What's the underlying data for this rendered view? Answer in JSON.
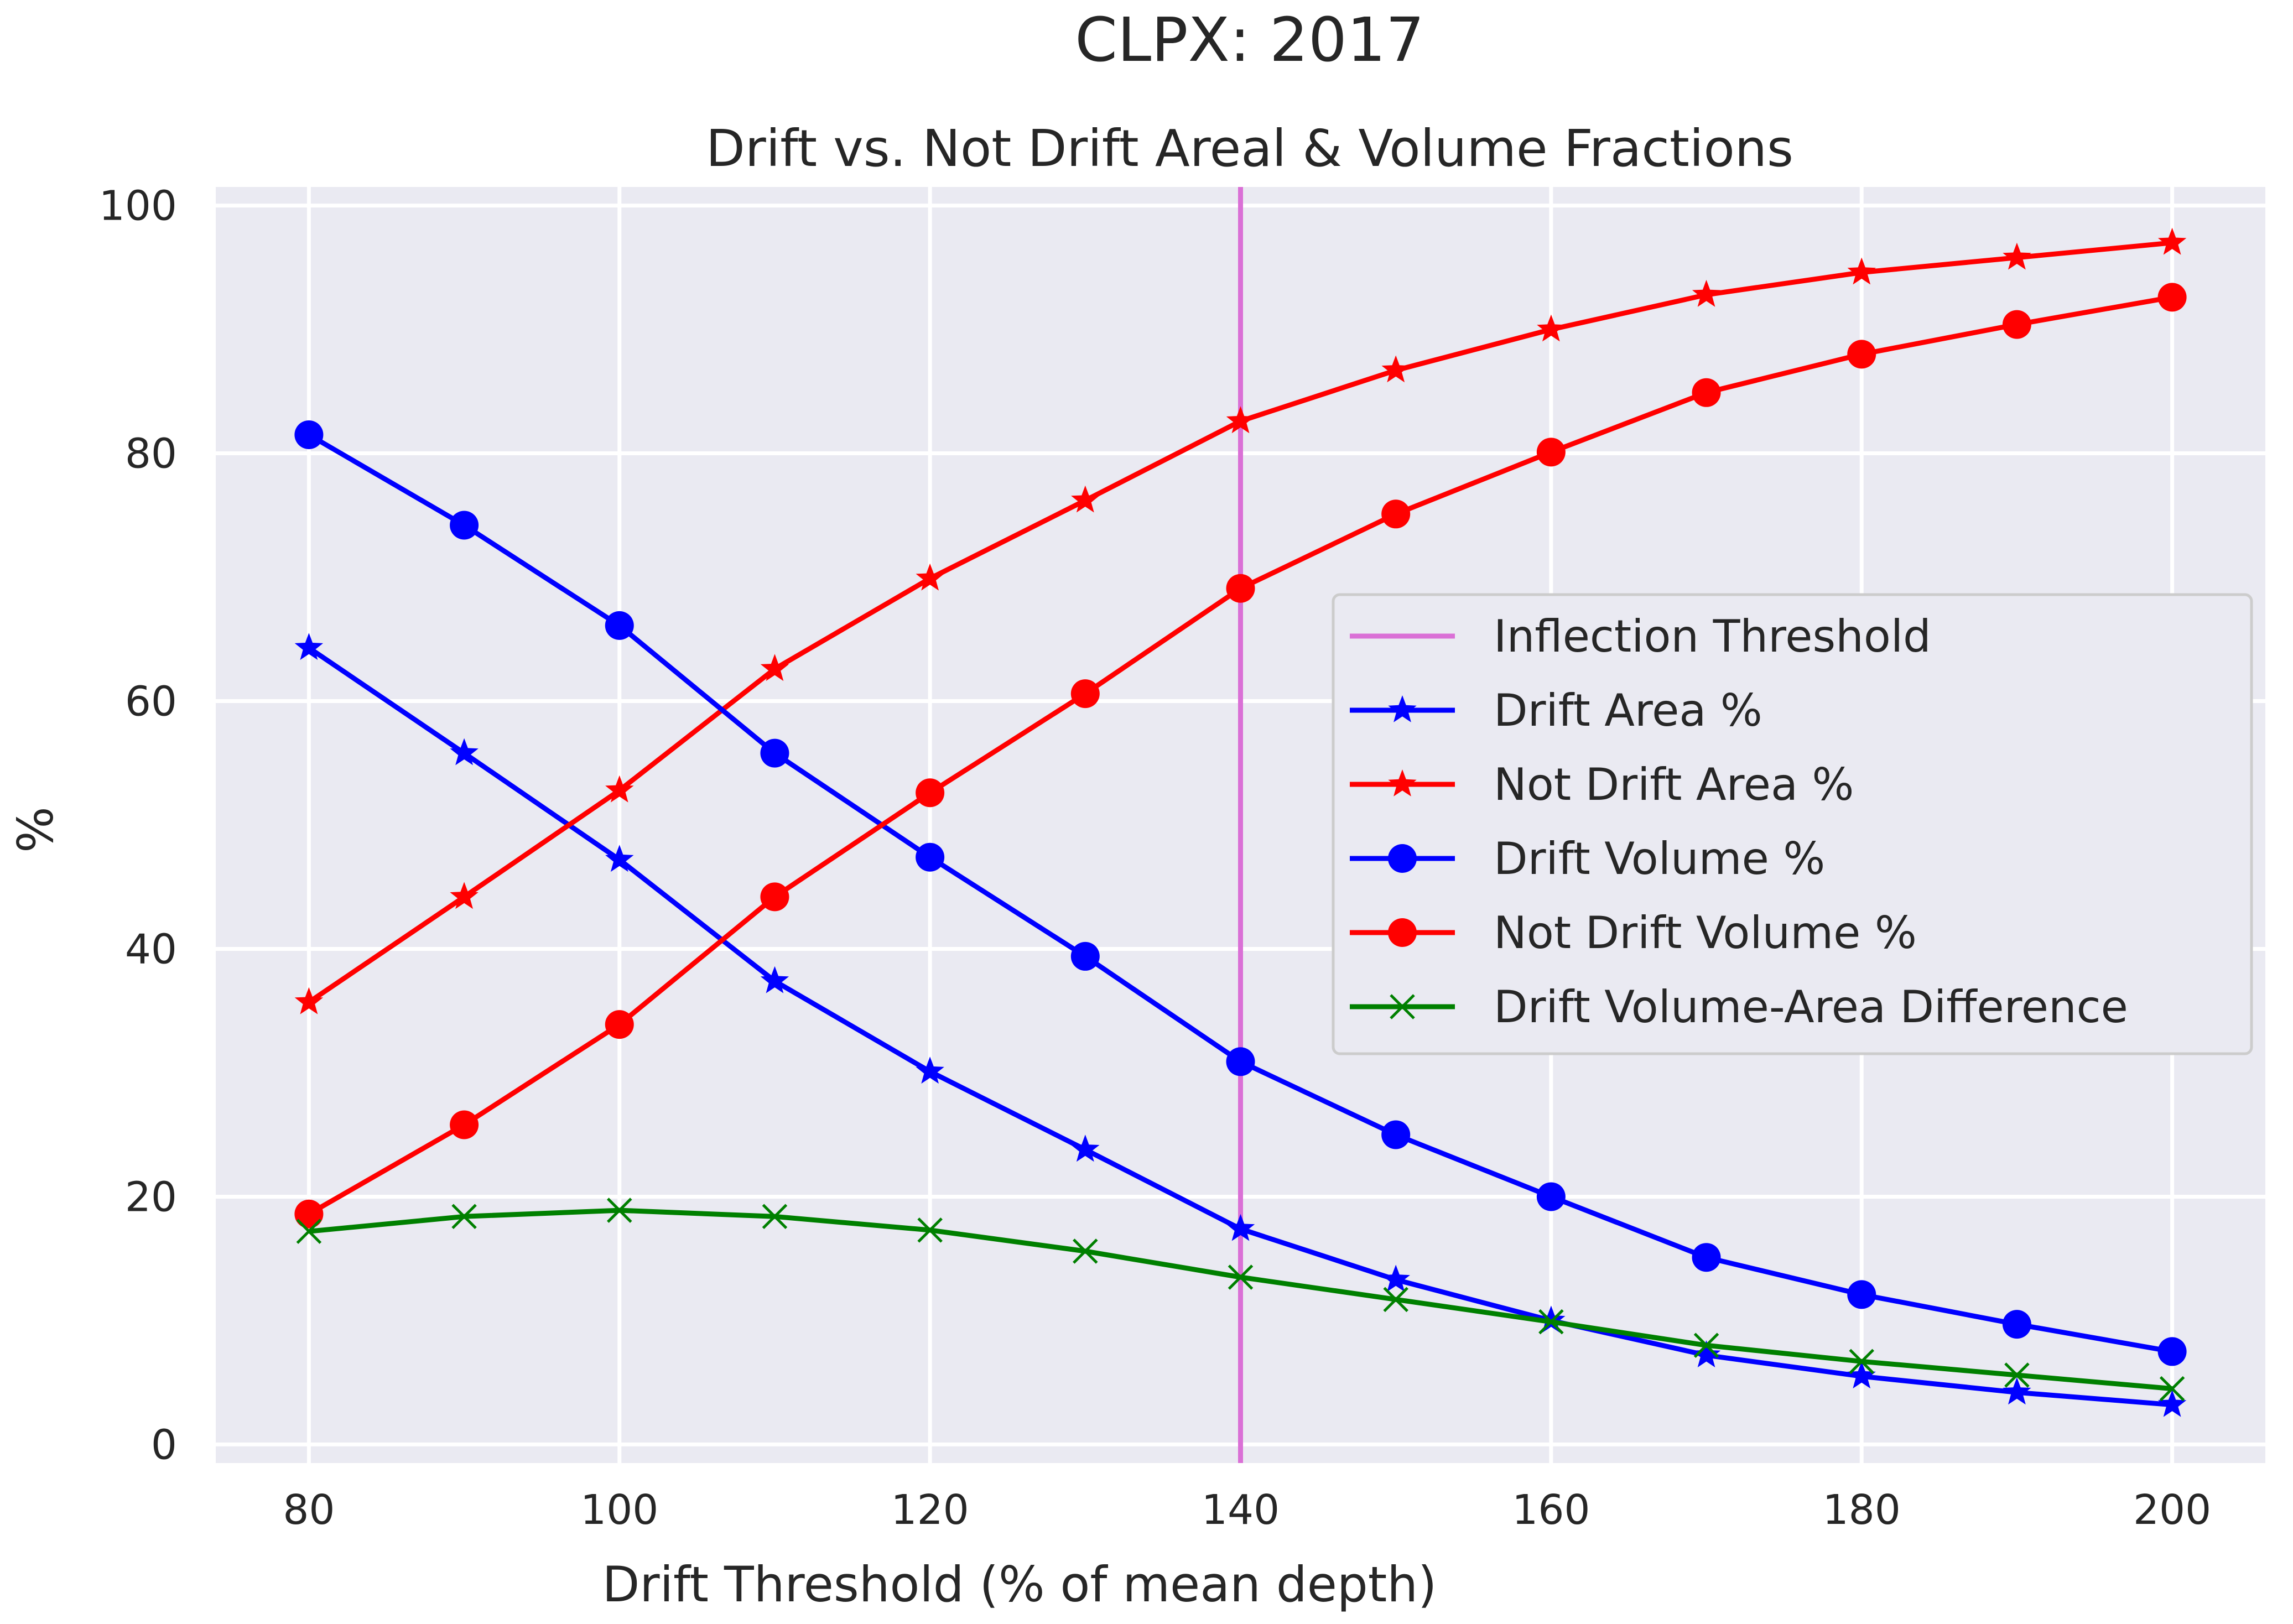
{
  "chart_data": {
    "type": "line",
    "suptitle": "CLPX: 2017",
    "title": "Drift vs. Not Drift Areal & Volume Fractions",
    "xlabel": "Drift Threshold (% of mean depth)",
    "ylabel": "%",
    "xlim": [
      74,
      206
    ],
    "ylim": [
      -1.5,
      101.5
    ],
    "xticks": [
      80,
      100,
      120,
      140,
      160,
      180,
      200
    ],
    "yticks": [
      0,
      20,
      40,
      60,
      80,
      100
    ],
    "grid": true,
    "legend_position": "center-right",
    "x": [
      80,
      90,
      100,
      110,
      120,
      130,
      140,
      150,
      160,
      170,
      180,
      190,
      200
    ],
    "vertical_line": {
      "name": "Inflection Threshold",
      "x": 140,
      "color": "#da70d6"
    },
    "series": [
      {
        "name": "Drift Area %",
        "color": "#0000ff",
        "marker": "star",
        "values": [
          64.3,
          55.8,
          47.2,
          37.4,
          30.1,
          23.8,
          17.4,
          13.3,
          10.0,
          7.2,
          5.5,
          4.2,
          3.2
        ]
      },
      {
        "name": "Not Drift Area %",
        "color": "#ff0000",
        "marker": "star",
        "values": [
          35.7,
          44.2,
          52.8,
          62.6,
          69.9,
          76.2,
          82.6,
          86.7,
          90.0,
          92.8,
          94.6,
          95.8,
          97.0
        ]
      },
      {
        "name": "Drift Volume %",
        "color": "#0000ff",
        "marker": "circle",
        "values": [
          81.5,
          74.2,
          66.1,
          55.8,
          47.4,
          39.4,
          30.9,
          25.0,
          20.0,
          15.1,
          12.1,
          9.7,
          7.5
        ]
      },
      {
        "name": "Not Drift Volume %",
        "color": "#ff0000",
        "marker": "circle",
        "values": [
          18.6,
          25.8,
          33.9,
          44.2,
          52.6,
          60.6,
          69.1,
          75.1,
          80.1,
          84.9,
          88.0,
          90.4,
          92.6
        ]
      },
      {
        "name": "Drift Volume-Area Difference",
        "color": "#008000",
        "marker": "x",
        "values": [
          17.2,
          18.4,
          18.9,
          18.4,
          17.3,
          15.6,
          13.5,
          11.7,
          9.9,
          8.0,
          6.7,
          5.6,
          4.5
        ]
      }
    ]
  }
}
